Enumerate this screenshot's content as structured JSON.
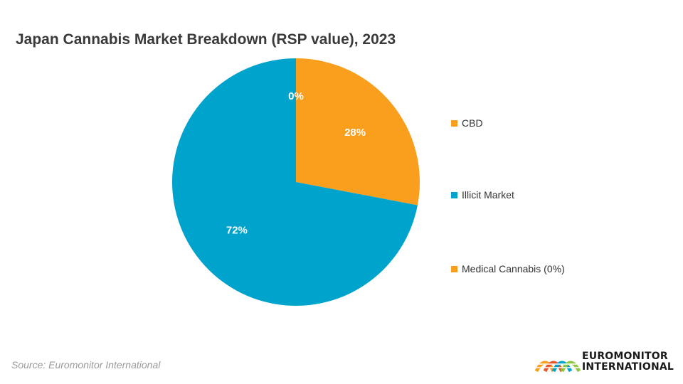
{
  "title": "Japan Cannabis Market Breakdown (RSP value), 2023",
  "source": "Source: Euromonitor International",
  "brand": {
    "line1": "EUROMONITOR",
    "line2": "INTERNATIONAL"
  },
  "colors": {
    "orange": "#F99E1D",
    "blue": "#00A3CC"
  },
  "chart_data": {
    "type": "pie",
    "title": "Japan Cannabis Market Breakdown (RSP value), 2023",
    "slices": [
      {
        "label": "CBD",
        "value": 28,
        "display": "28%",
        "color": "#F99E1D"
      },
      {
        "label": "Illicit Market",
        "value": 72,
        "display": "72%",
        "color": "#00A3CC"
      },
      {
        "label": "Medical Cannabis",
        "value": 0,
        "display": "0%",
        "color": "#F99E1D"
      }
    ],
    "legend": {
      "placement": "right",
      "entries": [
        "CBD",
        "Illicit Market",
        "Medical Cannabis (0%)"
      ]
    }
  }
}
